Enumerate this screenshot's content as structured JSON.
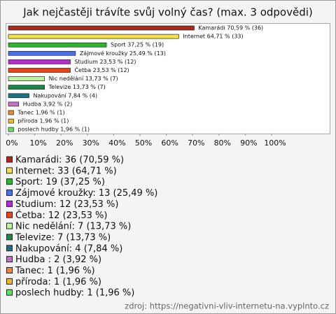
{
  "chart_data": {
    "type": "bar",
    "orientation": "horizontal",
    "title": "Jak nejčastěji trávíte svůj volný čas? (max. 3 odpovědi)",
    "categories": [
      "Kamarádi",
      "Internet",
      "Sport",
      "Zájmové kroužky",
      "Studium",
      "Četba",
      "Nic nedělání",
      "Televize",
      "Nakupování",
      "Hudba",
      "Tanec",
      "příroda",
      "poslech hudby"
    ],
    "values": [
      70.59,
      64.71,
      37.25,
      25.49,
      23.53,
      23.53,
      13.73,
      13.73,
      7.84,
      3.92,
      1.96,
      1.96,
      1.96
    ],
    "value_labels": [
      "Kamarádi 70,59 % (36)",
      "Internet 64,71 % (33)",
      "Sport 37,25 % (19)",
      "Zájmové kroužky 25,49 % (13)",
      "Studium 23,53 % (12)",
      "Četba 23,53 % (12)",
      "Nic nedělání 13,73 % (7)",
      "Televize 13,73 % (7)",
      "Nakupování 7,84 % (4)",
      "Hudba  3,92 % (2)",
      "Tanec 1,96 % (1)",
      "příroda 1,96 % (1)",
      "poslech hudby 1,96 % (1)"
    ],
    "legend_labels": [
      "Kamarádi: 36 (70,59 %)",
      "Internet: 33 (64,71 %)",
      "Sport: 19 (37,25 %)",
      "Zájmové kroužky: 13 (25,49 %)",
      "Studium: 12 (23,53 %)",
      "Četba: 12 (23,53 %)",
      "Nic nedělání: 7 (13,73 %)",
      "Televize: 7 (13,73 %)",
      "Nakupování: 4 (7,84 %)",
      "Hudba : 2 (3,92 %)",
      "Tanec: 1 (1,96 %)",
      "příroda: 1 (1,96 %)",
      "poslech hudby: 1 (1,96 %)"
    ],
    "colors": [
      "#a82a1c",
      "#f2e14c",
      "#2fb52f",
      "#4f6fe0",
      "#b030c8",
      "#e2461a",
      "#c4f0a4",
      "#238448",
      "#1f6f80",
      "#c470c8",
      "#e88a3a",
      "#f0b82a",
      "#62e062"
    ],
    "xlim": [
      0,
      100
    ],
    "xticks": [
      {
        "value": 0,
        "label": "0%"
      },
      {
        "value": 10,
        "label": "10%"
      },
      {
        "value": 20,
        "label": "20%"
      },
      {
        "value": 30,
        "label": "30%"
      },
      {
        "value": 40,
        "label": "40%"
      },
      {
        "value": 50,
        "label": "50%"
      },
      {
        "value": 60,
        "label": "60%"
      },
      {
        "value": 70,
        "label": "70%"
      },
      {
        "value": 80,
        "label": "80%"
      },
      {
        "value": 90,
        "label": "90%"
      },
      {
        "value": 100,
        "label": "100%"
      }
    ],
    "source": "zdroj:  https://negativni-vliv-internetu-na.vyplnto.cz"
  }
}
